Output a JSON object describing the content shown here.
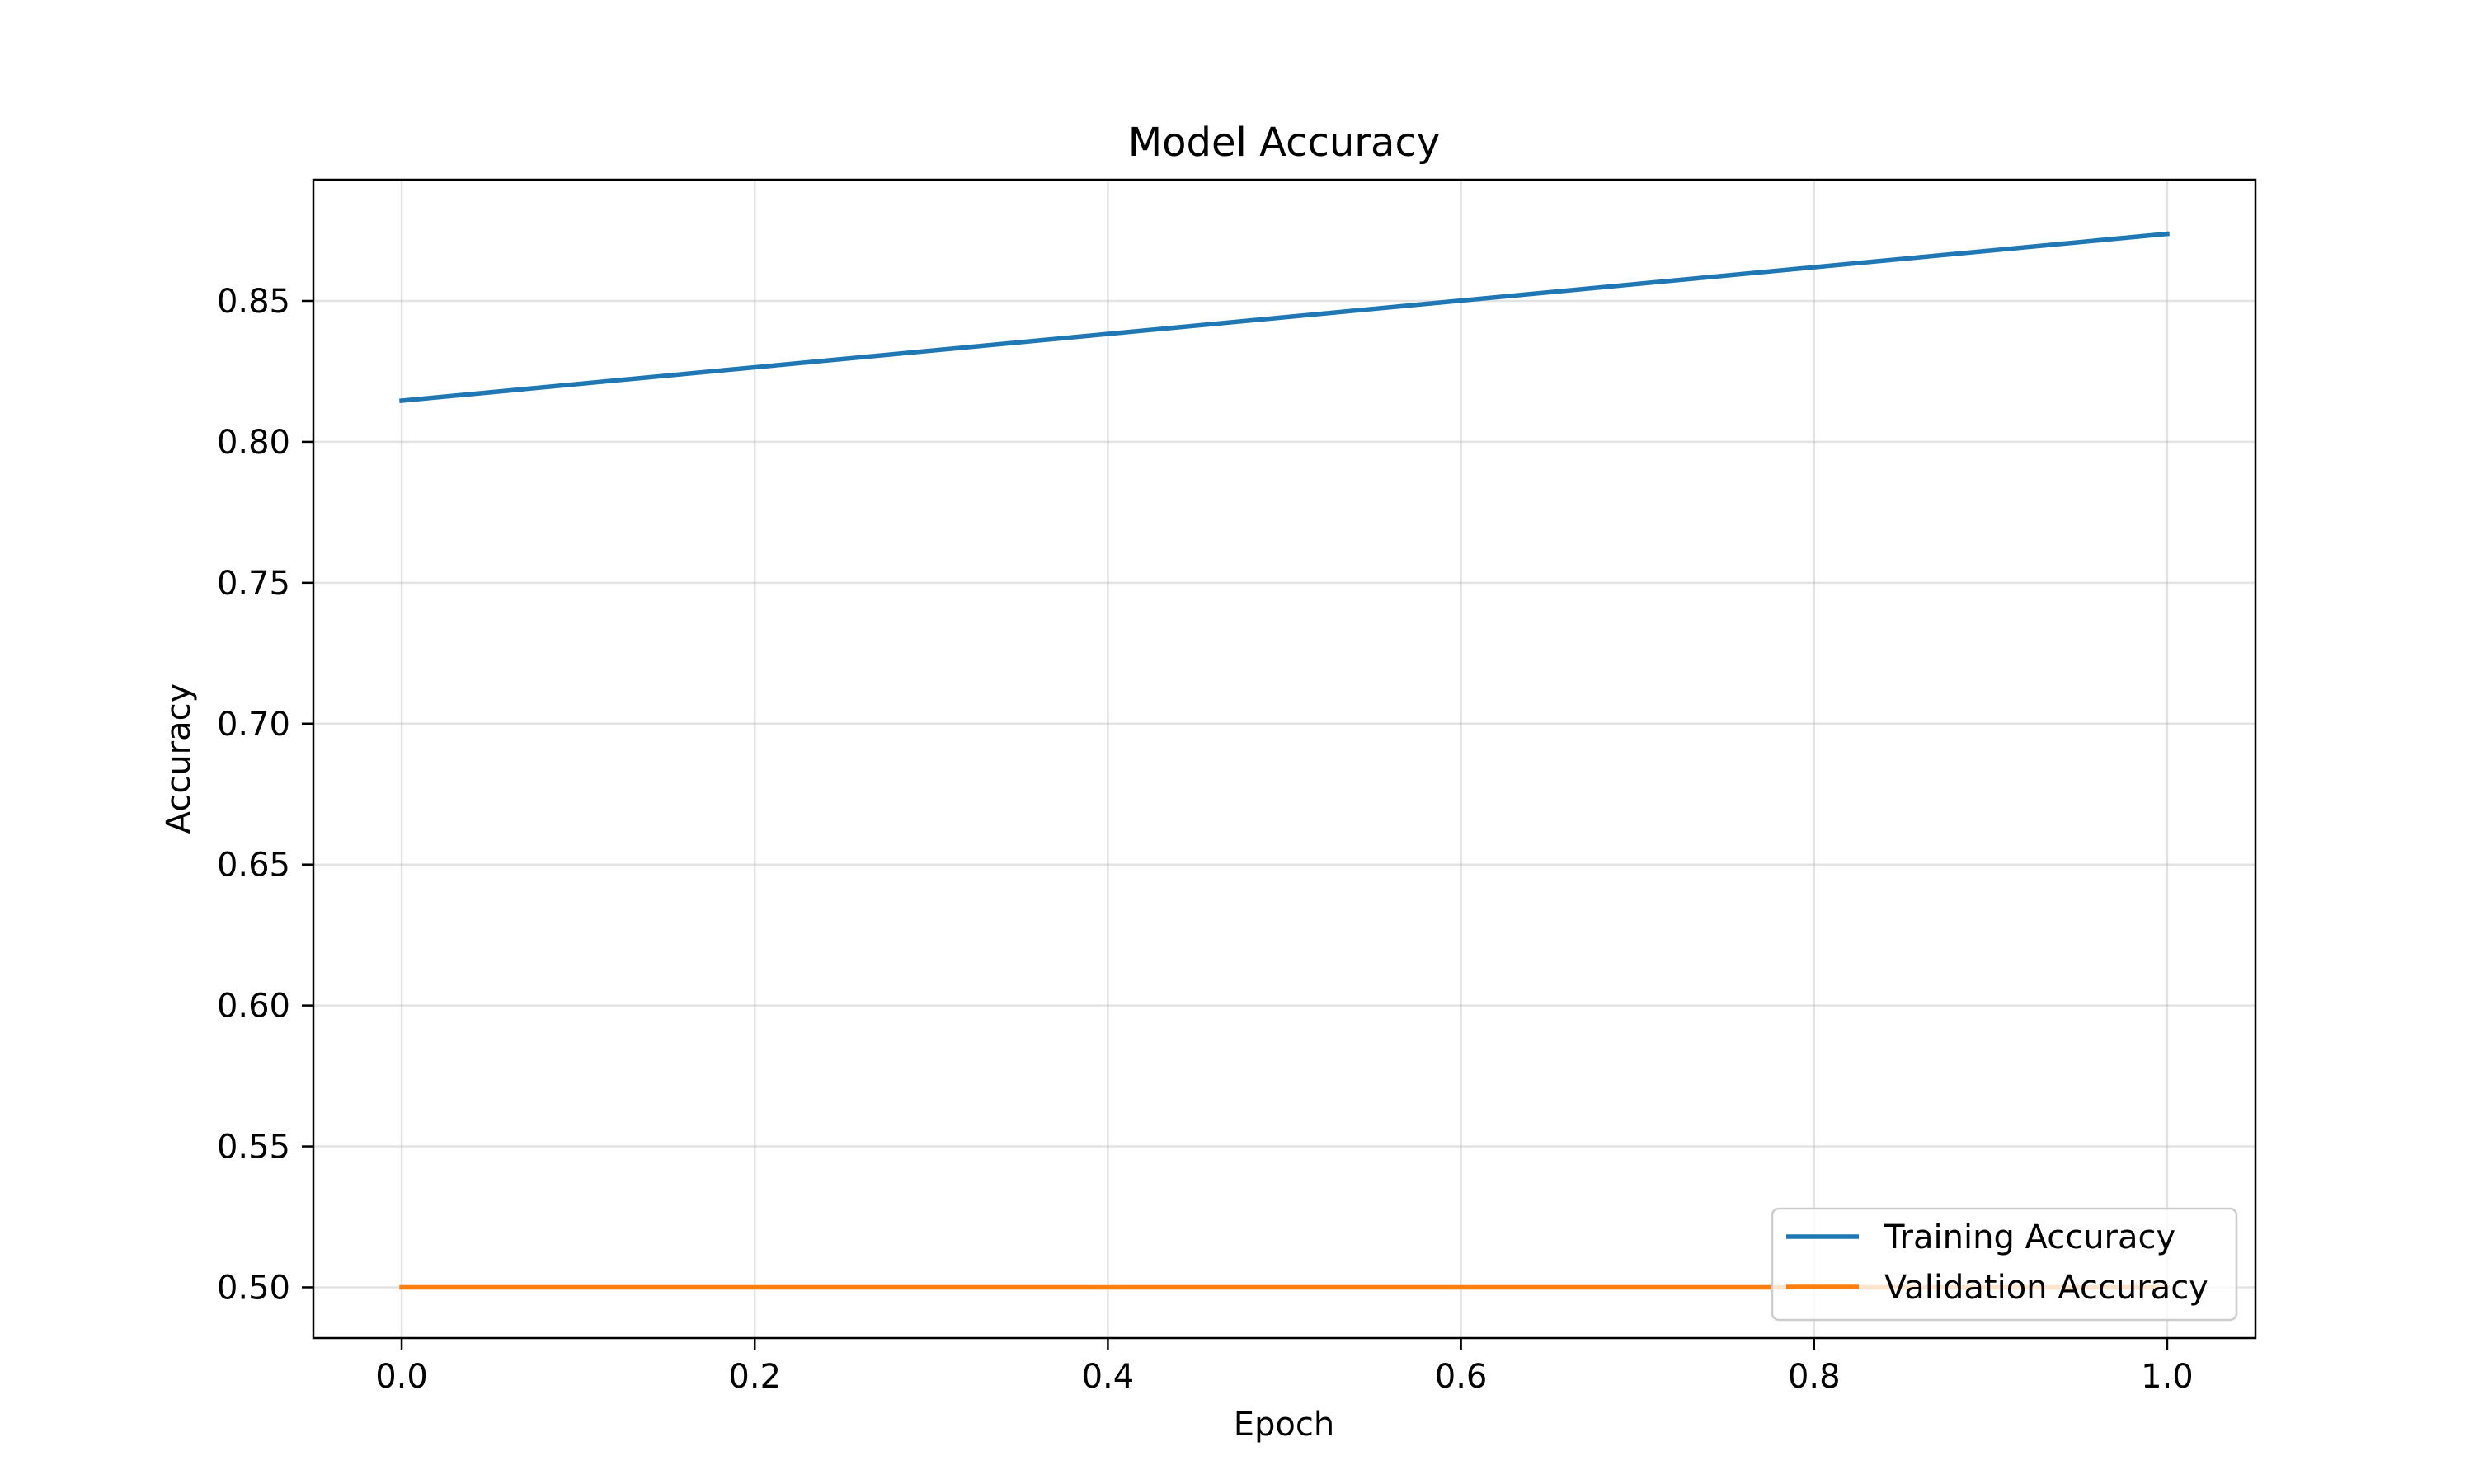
{
  "chart_data": {
    "type": "line",
    "title": "Model Accuracy",
    "xlabel": "Epoch",
    "ylabel": "Accuracy",
    "x": [
      0.0,
      1.0
    ],
    "xlim": [
      -0.05,
      1.05
    ],
    "ylim": [
      0.482,
      0.893
    ],
    "xticks": [
      0.0,
      0.2,
      0.4,
      0.6,
      0.8,
      1.0
    ],
    "xtick_labels": [
      "0.0",
      "0.2",
      "0.4",
      "0.6",
      "0.8",
      "1.0"
    ],
    "yticks": [
      0.5,
      0.55,
      0.6,
      0.65,
      0.7,
      0.75,
      0.8,
      0.85
    ],
    "ytick_labels": [
      "0.50",
      "0.55",
      "0.60",
      "0.65",
      "0.70",
      "0.75",
      "0.80",
      "0.85"
    ],
    "grid": true,
    "legend_position": "lower-right",
    "series": [
      {
        "name": "Training Accuracy",
        "values": [
          0.8146,
          0.8738
        ],
        "color": "#1f77b4"
      },
      {
        "name": "Validation Accuracy",
        "values": [
          0.5,
          0.5
        ],
        "color": "#ff7f0e"
      }
    ]
  }
}
